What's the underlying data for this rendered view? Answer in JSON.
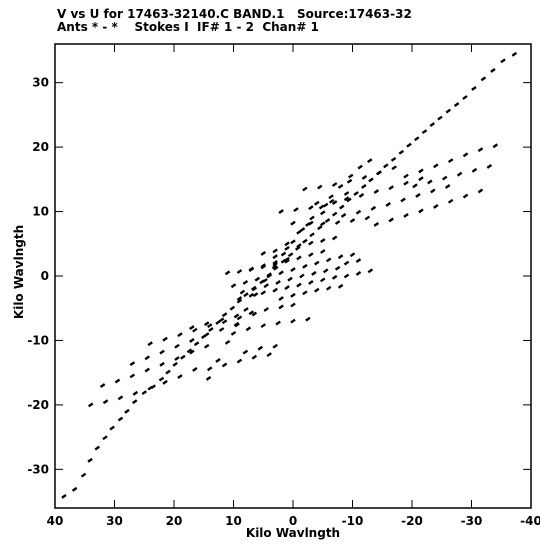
{
  "header": {
    "title_line1": "V vs U for 17463-32140.C BAND.1   Source:17463-32",
    "title_line2": "Ants * - *    Stokes I  IF# 1 - 2  Chan# 1"
  },
  "chart_data": {
    "type": "scatter",
    "title": "V vs U for 17463-32140.C BAND.1   Source:17463-32",
    "subtitle": "Ants * - *    Stokes I  IF# 1 - 2  Chan# 1",
    "xlabel": "Kilo Wavlngth",
    "ylabel": "Kilo Wavlngth",
    "xlim": [
      40,
      -40
    ],
    "ylim": [
      -36,
      36
    ],
    "x_ticks": [
      40,
      30,
      20,
      10,
      0,
      -10,
      -20,
      -30,
      -40
    ],
    "x_tick_labels": [
      "40",
      "30",
      "20",
      "10",
      "0",
      "-10",
      "-20",
      "-30",
      "-40"
    ],
    "y_ticks": [
      30,
      20,
      10,
      0,
      -10,
      -20,
      -30
    ],
    "y_tick_labels": [
      "30",
      "20",
      "10",
      "0",
      "-10",
      "-20",
      "-30"
    ],
    "grid": false,
    "marker_color": "#000000",
    "series": [
      {
        "points": [
          [
            38.5,
            -34.2
          ],
          [
            36.7,
            -33.1
          ],
          [
            35.2,
            -30.9
          ],
          [
            34.1,
            -28.6
          ],
          [
            32.9,
            -26.7
          ],
          [
            31.6,
            -25.1
          ],
          [
            30.4,
            -23.6
          ],
          [
            29.0,
            -22.2
          ],
          [
            27.9,
            -21.0
          ],
          [
            26.6,
            -19.5
          ],
          [
            25.0,
            -18.1
          ],
          [
            23.5,
            -17.2
          ],
          [
            22.1,
            -16.0
          ],
          [
            21.0,
            -14.9
          ],
          [
            19.8,
            -13.7
          ],
          [
            18.5,
            -12.6
          ],
          [
            17.4,
            -11.6
          ],
          [
            16.2,
            -10.5
          ],
          [
            15.0,
            -9.4
          ],
          [
            13.8,
            -8.3
          ],
          [
            12.6,
            -7.2
          ],
          [
            11.5,
            -6.0
          ],
          [
            10.2,
            -5.0
          ],
          [
            9.0,
            -3.9
          ],
          [
            7.9,
            -2.9
          ],
          [
            6.6,
            -1.9
          ],
          [
            5.2,
            -0.9
          ],
          [
            4.0,
            0.2
          ],
          [
            2.9,
            1.2
          ],
          [
            1.6,
            2.3
          ],
          [
            0.4,
            3.3
          ],
          [
            -0.8,
            4.3
          ],
          [
            -2.0,
            5.4
          ],
          [
            -3.2,
            6.4
          ],
          [
            -4.5,
            7.5
          ],
          [
            -5.8,
            8.6
          ],
          [
            -7.0,
            9.6
          ],
          [
            -8.2,
            10.7
          ],
          [
            -9.4,
            11.8
          ],
          [
            -10.6,
            12.8
          ],
          [
            -11.9,
            13.9
          ],
          [
            -13.1,
            14.9
          ],
          [
            -14.4,
            16.0
          ],
          [
            -15.6,
            17.1
          ],
          [
            -16.9,
            18.1
          ],
          [
            -18.2,
            19.2
          ],
          [
            -19.5,
            20.3
          ],
          [
            -20.8,
            21.3
          ],
          [
            -22.1,
            22.4
          ],
          [
            -23.4,
            23.5
          ],
          [
            -24.7,
            24.5
          ],
          [
            -26.1,
            25.6
          ],
          [
            -27.5,
            26.6
          ],
          [
            -28.9,
            27.7
          ],
          [
            -30.4,
            29.1
          ],
          [
            -32.0,
            30.6
          ],
          [
            -33.6,
            31.9
          ],
          [
            -35.3,
            33.4
          ],
          [
            -37.2,
            34.4
          ]
        ]
      },
      {
        "points": [
          [
            14.2,
            -15.9
          ],
          [
            12.6,
            -13.1
          ],
          [
            11.0,
            -10.3
          ],
          [
            9.4,
            -7.6
          ],
          [
            7.9,
            -5.2
          ],
          [
            6.3,
            -2.9
          ],
          [
            4.7,
            -0.7
          ],
          [
            3.1,
            1.4
          ],
          [
            1.6,
            3.4
          ],
          [
            0.0,
            5.3
          ],
          [
            -1.6,
            7.2
          ],
          [
            -3.2,
            9.0
          ],
          [
            -4.8,
            10.7
          ],
          [
            -6.4,
            12.3
          ],
          [
            -8.0,
            13.9
          ],
          [
            -9.7,
            15.5
          ],
          [
            -11.3,
            16.9
          ],
          [
            -12.9,
            17.9
          ]
        ]
      },
      {
        "points": [
          [
            34.0,
            -20.0
          ],
          [
            31.5,
            -19.5
          ],
          [
            29.0,
            -18.9
          ],
          [
            26.5,
            -18.2
          ],
          [
            24.0,
            -17.4
          ],
          [
            21.5,
            -16.5
          ],
          [
            19.0,
            -15.6
          ],
          [
            16.5,
            -14.5
          ],
          [
            32.0,
            -17.0
          ],
          [
            29.5,
            -16.3
          ],
          [
            27.0,
            -15.5
          ],
          [
            24.5,
            -14.6
          ],
          [
            22.0,
            -13.7
          ],
          [
            19.5,
            -12.8
          ],
          [
            17.0,
            -11.8
          ],
          [
            14.5,
            -10.9
          ],
          [
            27.0,
            -13.6
          ],
          [
            24.5,
            -12.7
          ],
          [
            22.0,
            -11.8
          ],
          [
            19.5,
            -10.9
          ],
          [
            17.0,
            -10.0
          ],
          [
            14.5,
            -9.1
          ],
          [
            12.0,
            -8.3
          ],
          [
            9.5,
            -7.5
          ],
          [
            24.0,
            -10.5
          ],
          [
            21.5,
            -9.8
          ],
          [
            19.0,
            -9.1
          ],
          [
            16.5,
            -8.4
          ],
          [
            14.0,
            -7.7
          ],
          [
            11.5,
            -7.1
          ],
          [
            9.0,
            -6.5
          ],
          [
            6.5,
            -5.9
          ],
          [
            17.0,
            -8.0
          ],
          [
            14.5,
            -7.4
          ],
          [
            12.0,
            -6.8
          ],
          [
            9.5,
            -6.2
          ],
          [
            7.0,
            -5.7
          ],
          [
            4.5,
            -5.2
          ],
          [
            2.0,
            -4.8
          ],
          [
            0.0,
            -4.5
          ],
          [
            14.0,
            -14.4
          ],
          [
            11.5,
            -13.8
          ],
          [
            9.0,
            -13.2
          ],
          [
            6.5,
            -12.6
          ],
          [
            4.0,
            -12.2
          ],
          [
            8.0,
            -11.8
          ],
          [
            5.5,
            -11.2
          ],
          [
            3.0,
            -10.9
          ],
          [
            10.0,
            -8.9
          ],
          [
            7.5,
            -8.2
          ],
          [
            5.0,
            -7.7
          ],
          [
            2.5,
            -7.3
          ],
          [
            0.0,
            -7.0
          ],
          [
            -2.5,
            -6.7
          ]
        ]
      },
      {
        "points": [
          [
            -2.0,
            13.5
          ],
          [
            -4.5,
            13.8
          ],
          [
            -7.0,
            14.2
          ],
          [
            -9.5,
            14.7
          ],
          [
            -12.0,
            15.3
          ],
          [
            -14.5,
            16.0
          ],
          [
            -17.0,
            16.8
          ],
          [
            -4.0,
            11.3
          ],
          [
            -6.5,
            11.6
          ],
          [
            -9.0,
            12.0
          ],
          [
            -11.5,
            12.5
          ],
          [
            -14.0,
            13.1
          ],
          [
            -16.5,
            13.7
          ],
          [
            -19.0,
            14.4
          ],
          [
            -21.5,
            15.1
          ],
          [
            -8.5,
            9.4
          ],
          [
            -11.0,
            9.9
          ],
          [
            -13.5,
            10.5
          ],
          [
            -16.0,
            11.1
          ],
          [
            -18.5,
            11.8
          ],
          [
            -21.0,
            12.5
          ],
          [
            -23.5,
            13.2
          ],
          [
            -26.0,
            13.9
          ],
          [
            -14.0,
            8.0
          ],
          [
            -16.5,
            8.7
          ],
          [
            -19.0,
            9.4
          ],
          [
            -21.5,
            10.1
          ],
          [
            -24.0,
            10.8
          ],
          [
            -26.5,
            11.6
          ],
          [
            -29.0,
            12.4
          ],
          [
            -31.5,
            13.2
          ],
          [
            -19.0,
            15.5
          ],
          [
            -21.5,
            16.3
          ],
          [
            -24.0,
            17.1
          ],
          [
            -26.5,
            17.9
          ],
          [
            -29.0,
            18.8
          ],
          [
            -31.5,
            19.6
          ],
          [
            -34.0,
            20.2
          ],
          [
            -20.5,
            14.0
          ],
          [
            -23.0,
            14.6
          ],
          [
            -25.5,
            15.2
          ],
          [
            -28.0,
            15.8
          ],
          [
            -30.5,
            16.4
          ],
          [
            -33.0,
            17.0
          ],
          [
            0.0,
            8.2
          ],
          [
            -2.5,
            8.0
          ],
          [
            -5.0,
            8.1
          ],
          [
            -7.5,
            8.3
          ],
          [
            -10.0,
            8.6
          ],
          [
            -12.5,
            9.0
          ],
          [
            2.0,
            10.0
          ],
          [
            -0.5,
            10.3
          ],
          [
            -3.0,
            10.6
          ],
          [
            -5.5,
            11.0
          ]
        ]
      },
      {
        "points": [
          [
            10.0,
            -1.5
          ],
          [
            8.0,
            -1.0
          ],
          [
            6.0,
            -0.5
          ],
          [
            4.0,
            0.0
          ],
          [
            2.0,
            0.5
          ],
          [
            0.0,
            1.0
          ],
          [
            -2.0,
            1.5
          ],
          [
            -4.0,
            2.0
          ],
          [
            -6.0,
            2.5
          ],
          [
            -8.0,
            3.0
          ],
          [
            -10.0,
            3.3
          ],
          [
            8.5,
            -2.5
          ],
          [
            6.5,
            -2.0
          ],
          [
            4.5,
            -1.5
          ],
          [
            2.5,
            -1.0
          ],
          [
            0.5,
            -0.5
          ],
          [
            -1.5,
            0.0
          ],
          [
            -3.5,
            0.4
          ],
          [
            -5.5,
            0.8
          ],
          [
            -7.5,
            1.2
          ],
          [
            7.0,
            1.0
          ],
          [
            5.0,
            1.4
          ],
          [
            3.0,
            1.8
          ],
          [
            1.0,
            2.3
          ],
          [
            -1.0,
            2.8
          ],
          [
            -3.0,
            3.3
          ],
          [
            -5.0,
            3.8
          ],
          [
            11.0,
            0.5
          ],
          [
            9.0,
            0.7
          ],
          [
            7.0,
            1.1
          ],
          [
            5.0,
            1.6
          ],
          [
            3.0,
            2.1
          ],
          [
            1.0,
            2.6
          ],
          [
            5.0,
            3.5
          ],
          [
            3.0,
            3.9
          ],
          [
            1.0,
            4.3
          ],
          [
            -1.0,
            4.7
          ],
          [
            -3.0,
            5.1
          ],
          [
            -5.0,
            5.5
          ],
          [
            -7.0,
            5.9
          ],
          [
            9.0,
            -3.5
          ],
          [
            7.0,
            -3.0
          ],
          [
            5.0,
            -2.6
          ],
          [
            3.0,
            -2.2
          ],
          [
            1.0,
            -1.8
          ],
          [
            -1.0,
            -1.4
          ],
          [
            -3.0,
            -1.0
          ],
          [
            -5.0,
            -0.6
          ],
          [
            -7.0,
            -0.2
          ],
          [
            2.0,
            -3.5
          ],
          [
            0.0,
            -3.0
          ],
          [
            -2.0,
            -2.6
          ],
          [
            -4.0,
            -2.2
          ],
          [
            -6.0,
            -1.9
          ],
          [
            -8.0,
            -1.6
          ],
          [
            -9.0,
            0.0
          ],
          [
            -11.0,
            0.4
          ],
          [
            -13.0,
            0.8
          ],
          [
            -9.0,
            2.0
          ],
          [
            -11.0,
            2.4
          ]
        ]
      },
      {
        "points": [
          [
            3.0,
            3.0
          ],
          [
            1.0,
            5.0
          ],
          [
            -1.0,
            6.8
          ],
          [
            -3.0,
            8.2
          ],
          [
            -5.0,
            9.8
          ],
          [
            -7.0,
            11.4
          ],
          [
            -9.0,
            12.8
          ]
        ]
      }
    ]
  }
}
